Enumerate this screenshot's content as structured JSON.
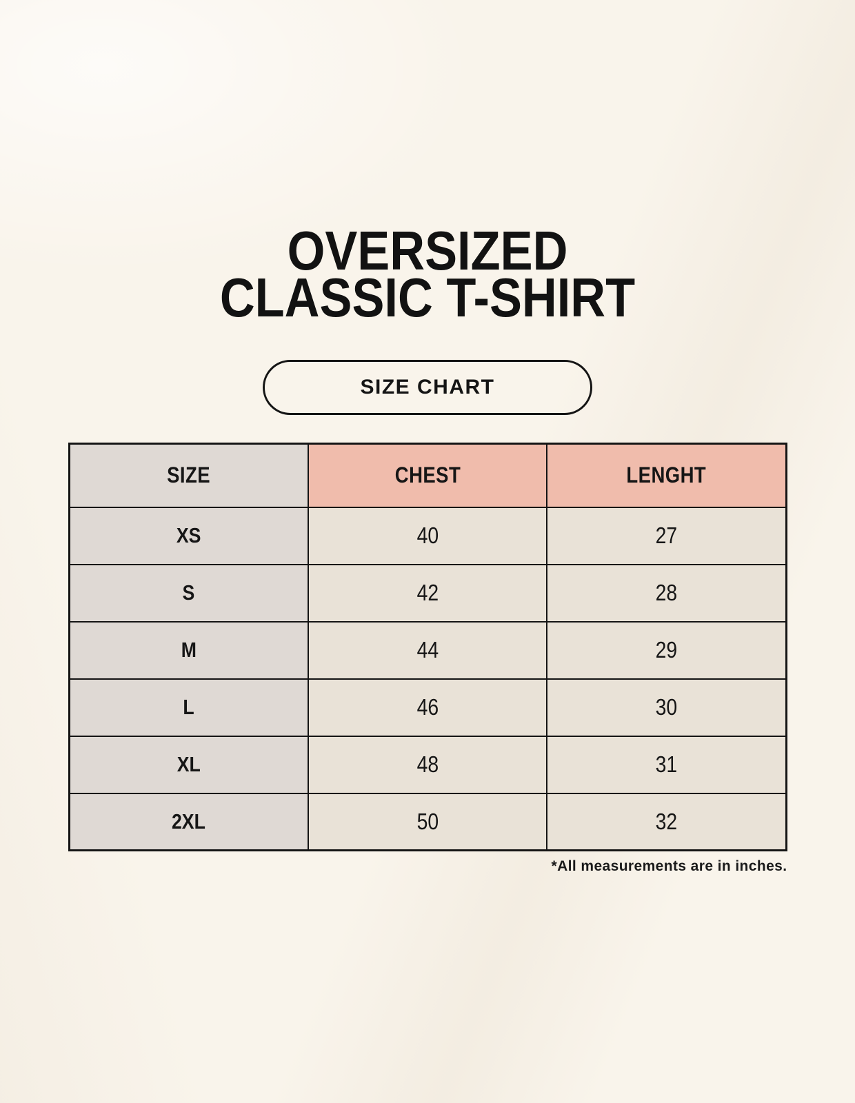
{
  "page": {
    "title_line1": "OVERSIZED",
    "title_line2": "CLASSIC T-SHIRT",
    "badge_label": "SIZE CHART",
    "footnote": "*All measurements are in inches."
  },
  "colors": {
    "background": "#F9F4EB",
    "header_accent": "#F0BCAC",
    "size_column_gray": "#DFD9D4",
    "data_cell_cream": "#E9E2D7",
    "border": "#141414",
    "text": "#161616"
  },
  "chart_data": {
    "type": "table",
    "title": "OVERSIZED CLASSIC T-SHIRT — SIZE CHART",
    "unit_note": "*All measurements are in inches.",
    "columns": [
      "SIZE",
      "CHEST",
      "LENGHT"
    ],
    "rows": [
      [
        "XS",
        "40",
        "27"
      ],
      [
        "S",
        "42",
        "28"
      ],
      [
        "M",
        "44",
        "29"
      ],
      [
        "L",
        "46",
        "30"
      ],
      [
        "XL",
        "48",
        "31"
      ],
      [
        "2XL",
        "50",
        "32"
      ]
    ]
  }
}
